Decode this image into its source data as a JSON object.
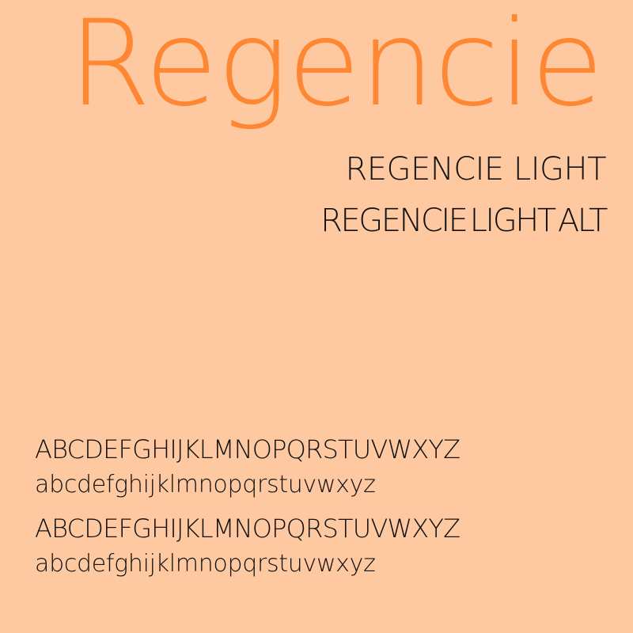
{
  "colors": {
    "background": "#fec9a0",
    "title": "#fe8734",
    "text": "#111111"
  },
  "title": "Regencie",
  "styles": [
    "REGENCIE LIGHT",
    "REGENCIE LIGHT ALT"
  ],
  "specimen": {
    "upper_1": "ABCDEFGHIJKLMNOPQRSTUVWXYZ",
    "lower_1": "abcdefghijklmnopqrstuvwxyz",
    "upper_2": "ABCDEFGHIJKLMNOPQRSTUVWXYZ",
    "lower_2": "abcdefghijklmnopqrstuvwxyz"
  }
}
